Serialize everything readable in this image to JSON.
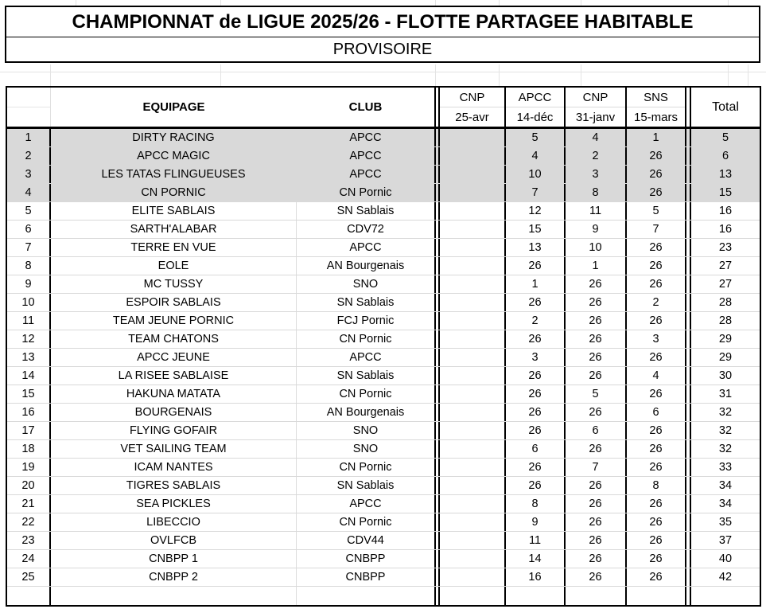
{
  "title": "CHAMPIONNAT de LIGUE 2025/26 - FLOTTE PARTAGEE HABITABLE",
  "subtitle": "PROVISOIRE",
  "colors": {
    "highlight_row_fill": "#d9d9d9",
    "border": "#000000",
    "gridline": "#d9d9d9"
  },
  "table": {
    "headers": {
      "rank": "",
      "equipage": "EQUIPAGE",
      "club": "CLUB",
      "total": "Total",
      "events": [
        {
          "name": "CNP",
          "date": "25-avr"
        },
        {
          "name": "APCC",
          "date": "14-déc"
        },
        {
          "name": "CNP",
          "date": "31-janv"
        },
        {
          "name": "SNS",
          "date": "15-mars"
        }
      ]
    },
    "rows": [
      {
        "rank": "1",
        "equipage": "DIRTY RACING",
        "club": "APCC",
        "scores": [
          "",
          "5",
          "4",
          "1"
        ],
        "total": "5",
        "highlight": true
      },
      {
        "rank": "2",
        "equipage": "APCC MAGIC",
        "club": "APCC",
        "scores": [
          "",
          "4",
          "2",
          "26"
        ],
        "total": "6",
        "highlight": true
      },
      {
        "rank": "3",
        "equipage": "LES TATAS FLINGUEUSES",
        "club": "APCC",
        "scores": [
          "",
          "10",
          "3",
          "26"
        ],
        "total": "13",
        "highlight": true
      },
      {
        "rank": "4",
        "equipage": "CN PORNIC",
        "club": "CN Pornic",
        "scores": [
          "",
          "7",
          "8",
          "26"
        ],
        "total": "15",
        "highlight": true
      },
      {
        "rank": "5",
        "equipage": "ELITE SABLAIS",
        "club": "SN Sablais",
        "scores": [
          "",
          "12",
          "11",
          "5"
        ],
        "total": "16",
        "highlight": false
      },
      {
        "rank": "6",
        "equipage": "SARTH'ALABAR",
        "club": "CDV72",
        "scores": [
          "",
          "15",
          "9",
          "7"
        ],
        "total": "16",
        "highlight": false
      },
      {
        "rank": "7",
        "equipage": "TERRE EN VUE",
        "club": "APCC",
        "scores": [
          "",
          "13",
          "10",
          "26"
        ],
        "total": "23",
        "highlight": false
      },
      {
        "rank": "8",
        "equipage": "EOLE",
        "club": "AN Bourgenais",
        "scores": [
          "",
          "26",
          "1",
          "26"
        ],
        "total": "27",
        "highlight": false
      },
      {
        "rank": "9",
        "equipage": "MC TUSSY",
        "club": "SNO",
        "scores": [
          "",
          "1",
          "26",
          "26"
        ],
        "total": "27",
        "highlight": false
      },
      {
        "rank": "10",
        "equipage": "ESPOIR SABLAIS",
        "club": "SN Sablais",
        "scores": [
          "",
          "26",
          "26",
          "2"
        ],
        "total": "28",
        "highlight": false
      },
      {
        "rank": "11",
        "equipage": "TEAM JEUNE PORNIC",
        "club": "FCJ Pornic",
        "scores": [
          "",
          "2",
          "26",
          "26"
        ],
        "total": "28",
        "highlight": false
      },
      {
        "rank": "12",
        "equipage": "TEAM CHATONS",
        "club": "CN Pornic",
        "scores": [
          "",
          "26",
          "26",
          "3"
        ],
        "total": "29",
        "highlight": false
      },
      {
        "rank": "13",
        "equipage": "APCC JEUNE",
        "club": "APCC",
        "scores": [
          "",
          "3",
          "26",
          "26"
        ],
        "total": "29",
        "highlight": false
      },
      {
        "rank": "14",
        "equipage": "LA RISEE SABLAISE",
        "club": "SN Sablais",
        "scores": [
          "",
          "26",
          "26",
          "4"
        ],
        "total": "30",
        "highlight": false
      },
      {
        "rank": "15",
        "equipage": "HAKUNA MATATA",
        "club": "CN Pornic",
        "scores": [
          "",
          "26",
          "5",
          "26"
        ],
        "total": "31",
        "highlight": false
      },
      {
        "rank": "16",
        "equipage": "BOURGENAIS",
        "club": "AN Bourgenais",
        "scores": [
          "",
          "26",
          "26",
          "6"
        ],
        "total": "32",
        "highlight": false
      },
      {
        "rank": "17",
        "equipage": "FLYING GOFAIR",
        "club": "SNO",
        "scores": [
          "",
          "26",
          "6",
          "26"
        ],
        "total": "32",
        "highlight": false
      },
      {
        "rank": "18",
        "equipage": "VET SAILING TEAM",
        "club": "SNO",
        "scores": [
          "",
          "6",
          "26",
          "26"
        ],
        "total": "32",
        "highlight": false
      },
      {
        "rank": "19",
        "equipage": "ICAM NANTES",
        "club": "CN Pornic",
        "scores": [
          "",
          "26",
          "7",
          "26"
        ],
        "total": "33",
        "highlight": false
      },
      {
        "rank": "20",
        "equipage": "TIGRES SABLAIS",
        "club": "SN Sablais",
        "scores": [
          "",
          "26",
          "26",
          "8"
        ],
        "total": "34",
        "highlight": false
      },
      {
        "rank": "21",
        "equipage": "SEA PICKLES",
        "club": "APCC",
        "scores": [
          "",
          "8",
          "26",
          "26"
        ],
        "total": "34",
        "highlight": false
      },
      {
        "rank": "22",
        "equipage": "LIBECCIO",
        "club": "CN Pornic",
        "scores": [
          "",
          "9",
          "26",
          "26"
        ],
        "total": "35",
        "highlight": false
      },
      {
        "rank": "23",
        "equipage": "OVLFCB",
        "club": "CDV44",
        "scores": [
          "",
          "11",
          "26",
          "26"
        ],
        "total": "37",
        "highlight": false
      },
      {
        "rank": "24",
        "equipage": "CNBPP 1",
        "club": "CNBPP",
        "scores": [
          "",
          "14",
          "26",
          "26"
        ],
        "total": "40",
        "highlight": false
      },
      {
        "rank": "25",
        "equipage": "CNBPP 2",
        "club": "CNBPP",
        "scores": [
          "",
          "16",
          "26",
          "26"
        ],
        "total": "42",
        "highlight": false
      }
    ],
    "trailing_empty_row": true
  }
}
